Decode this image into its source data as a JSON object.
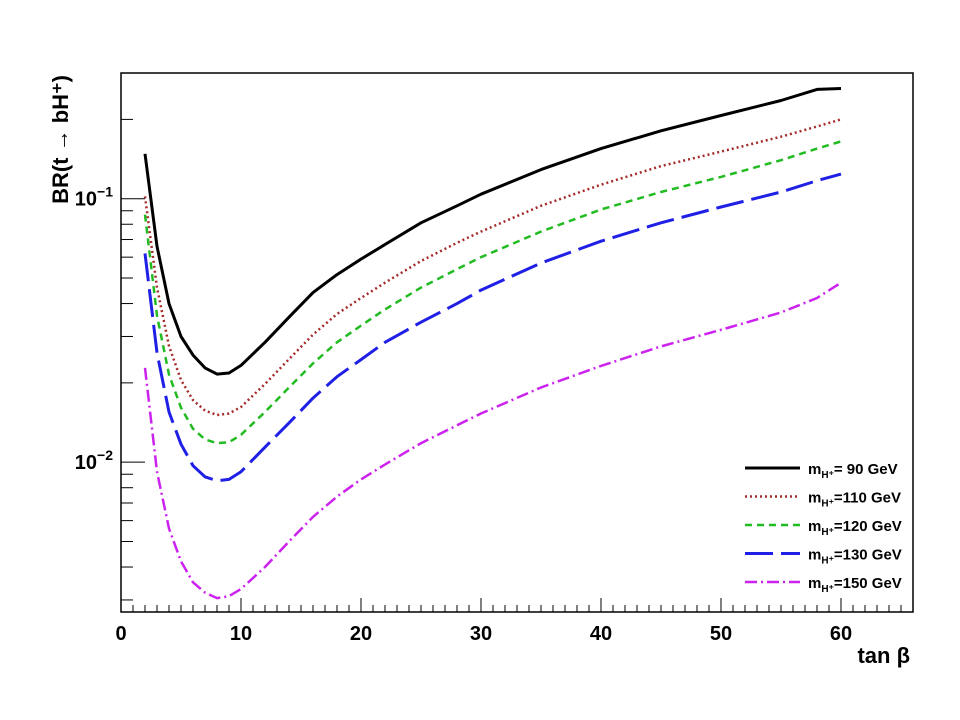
{
  "chart_data": {
    "type": "line",
    "xlabel": "tan β",
    "ylabel": "BR(t → bH⁺)",
    "xlim": [
      0,
      66
    ],
    "ylim": [
      0.0027,
      0.3
    ],
    "yscale": "log",
    "grid": false,
    "legend_position": "bottom-right",
    "x_ticks": [
      0,
      10,
      20,
      30,
      40,
      50,
      60
    ],
    "y_ticks": [
      {
        "value": 0.01,
        "base": "10",
        "exp": "−2"
      },
      {
        "value": 0.1,
        "base": "10",
        "exp": "−1"
      }
    ],
    "x": [
      2,
      3,
      4,
      5,
      6,
      7,
      8,
      9,
      10,
      12,
      14,
      16,
      18,
      20,
      22,
      25,
      28,
      30,
      35,
      40,
      45,
      50,
      55,
      58,
      60
    ],
    "series": [
      {
        "name": "m_{H+}= 90 GeV",
        "label_main": "m",
        "label_sub": "H⁺",
        "label_rest": "=  90 GeV",
        "color": "#000000",
        "dash": "",
        "width": 3,
        "values": [
          0.148,
          0.066,
          0.04,
          0.03,
          0.0255,
          0.0228,
          0.0216,
          0.0218,
          0.0233,
          0.0285,
          0.0355,
          0.044,
          0.0515,
          0.059,
          0.067,
          0.081,
          0.094,
          0.104,
          0.129,
          0.155,
          0.181,
          0.207,
          0.236,
          0.26,
          0.262
        ]
      },
      {
        "name": "m_{H+}=110 GeV",
        "label_main": "m",
        "label_sub": "H⁺",
        "label_rest": "=110 GeV",
        "color": "#a52a2a",
        "dash": "2,3",
        "width": 2.5,
        "values": [
          0.102,
          0.046,
          0.0276,
          0.0205,
          0.0172,
          0.0157,
          0.0151,
          0.0153,
          0.0162,
          0.0198,
          0.0246,
          0.0305,
          0.0365,
          0.042,
          0.048,
          0.058,
          0.068,
          0.075,
          0.094,
          0.113,
          0.133,
          0.151,
          0.172,
          0.188,
          0.2
        ]
      },
      {
        "name": "m_{H+}=120 GeV",
        "label_main": "m",
        "label_sub": "H⁺",
        "label_rest": "=120 GeV",
        "color": "#22bb22",
        "dash": "7,5",
        "width": 2.5,
        "values": [
          0.087,
          0.036,
          0.0215,
          0.0161,
          0.0134,
          0.0122,
          0.0118,
          0.0119,
          0.0127,
          0.0155,
          0.0192,
          0.0237,
          0.0285,
          0.033,
          0.038,
          0.046,
          0.054,
          0.06,
          0.075,
          0.091,
          0.106,
          0.121,
          0.14,
          0.155,
          0.165
        ]
      },
      {
        "name": "m_{H+}=130 GeV",
        "label_main": "m",
        "label_sub": "H⁺",
        "label_rest": "=130 GeV",
        "color": "#1f1fe6",
        "dash": "28,8",
        "width": 3,
        "values": [
          0.062,
          0.026,
          0.0155,
          0.0117,
          0.0097,
          0.0088,
          0.0085,
          0.0086,
          0.0092,
          0.0114,
          0.0141,
          0.0175,
          0.0211,
          0.0245,
          0.0285,
          0.034,
          0.04,
          0.045,
          0.057,
          0.069,
          0.081,
          0.093,
          0.106,
          0.117,
          0.124
        ]
      },
      {
        "name": "m_{H+}=150 GeV",
        "label_main": "m",
        "label_sub": "H⁺",
        "label_rest": "=150 GeV",
        "color": "#cc22ee",
        "dash": "12,4,2,4",
        "width": 2.5,
        "values": [
          0.0228,
          0.0092,
          0.0056,
          0.0042,
          0.0035,
          0.0032,
          0.00305,
          0.0031,
          0.0033,
          0.004,
          0.005,
          0.0062,
          0.0074,
          0.0086,
          0.0098,
          0.0118,
          0.0138,
          0.0153,
          0.0192,
          0.0232,
          0.0275,
          0.0318,
          0.037,
          0.042,
          0.048
        ]
      }
    ]
  }
}
